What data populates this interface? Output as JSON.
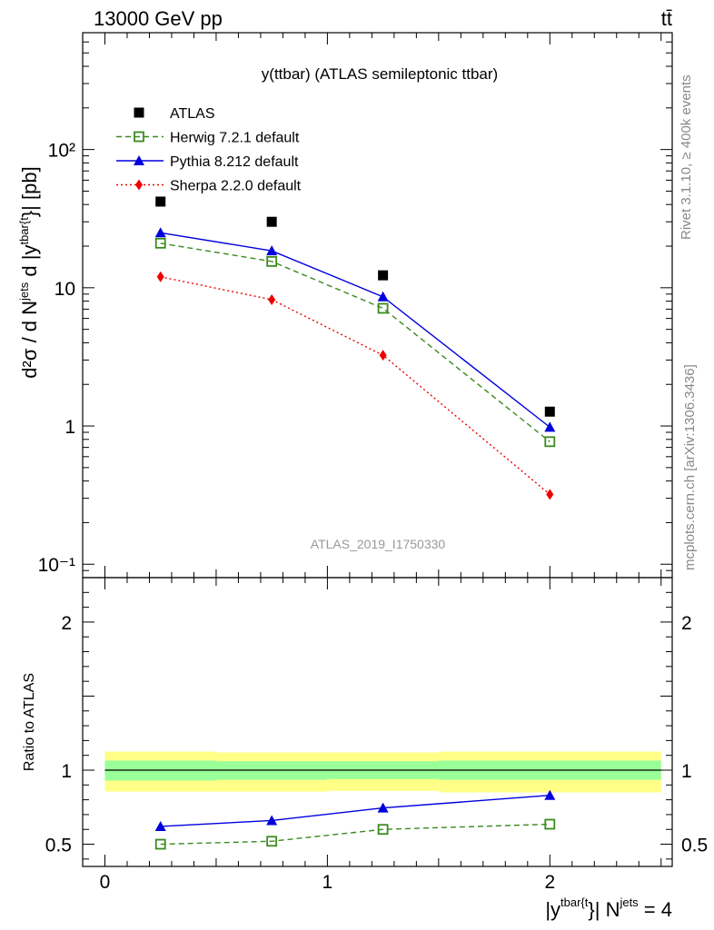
{
  "header": {
    "energy_label": "13000 GeV pp",
    "process_label": "tt̄"
  },
  "side_labels": {
    "rivet": "Rivet 3.1.10, ≥ 400k events",
    "mcplots": "mcplots.cern.ch [arXiv:1306.3436]"
  },
  "chart_data": [
    {
      "type": "scatter",
      "title": "y(ttbar) (ATLAS semileptonic ttbar)",
      "watermark": "ATLAS_2019_I1750330",
      "ylabel": {
        "main": "d²σ / d N",
        "sup1": "jets",
        "mid": " d |y",
        "sup2": "tbar{t",
        "end": "}| [pb]"
      },
      "yscale": "log",
      "ylim": [
        0.08,
        700
      ],
      "xlim": [
        -0.1,
        2.55
      ],
      "yticks": [
        {
          "v": 0.1,
          "label": "10⁻¹"
        },
        {
          "v": 1,
          "label": "1"
        },
        {
          "v": 10,
          "label": "10"
        },
        {
          "v": 100,
          "label": "10²"
        }
      ],
      "x": [
        0.25,
        0.75,
        1.25,
        2.0
      ],
      "legend_position": "top-left",
      "series": [
        {
          "name": "ATLAS",
          "marker": "square-filled",
          "color": "#000000",
          "line": "none",
          "values": [
            42,
            30,
            12.3,
            1.27
          ]
        },
        {
          "name": "Herwig 7.2.1 default",
          "marker": "square-open",
          "color": "#3a8a1e",
          "line": "dashed",
          "values": [
            21,
            15.5,
            7.1,
            0.77
          ]
        },
        {
          "name": "Pythia 8.212 default",
          "marker": "triangle-filled",
          "color": "#0000dd",
          "line": "solid",
          "values": [
            25,
            18.5,
            8.6,
            0.98
          ]
        },
        {
          "name": "Sherpa 2.2.0 default",
          "marker": "diamond-filled",
          "color": "#ee0000",
          "line": "dotted",
          "values": [
            12,
            8.2,
            3.25,
            0.32
          ]
        }
      ]
    },
    {
      "type": "scatter",
      "ylabel": "Ratio to ATLAS",
      "xlabel": {
        "main": "|y",
        "sup1": "tbar{t",
        "mid": "}| N",
        "sup2": "jets",
        "end": " = 4"
      },
      "ylim": [
        0.35,
        2.3
      ],
      "xlim": [
        -0.1,
        2.55
      ],
      "yticks": [
        0.5,
        1,
        2
      ],
      "xticks": [
        0,
        1,
        2
      ],
      "reference_line": 1.0,
      "bands": {
        "bins": [
          [
            0,
            0.5
          ],
          [
            0.5,
            1.0
          ],
          [
            1.0,
            1.5
          ],
          [
            1.5,
            2.5
          ]
        ],
        "outer": {
          "color": "#ffff88",
          "lo": [
            0.855,
            0.855,
            0.86,
            0.85
          ],
          "hi": [
            1.125,
            1.12,
            1.12,
            1.125
          ]
        },
        "inner": {
          "color": "#99ff99",
          "lo": [
            0.93,
            0.935,
            0.94,
            0.935
          ],
          "hi": [
            1.065,
            1.06,
            1.06,
            1.065
          ]
        }
      },
      "x": [
        0.25,
        0.75,
        1.25,
        2.0
      ],
      "series": [
        {
          "name": "Pythia 8.212 default",
          "marker": "triangle-filled",
          "color": "#0000dd",
          "line": "solid",
          "values": [
            0.62,
            0.66,
            0.745,
            0.83
          ],
          "errors": [
            0,
            0,
            0,
            0.025
          ]
        },
        {
          "name": "Herwig 7.2.1 default",
          "marker": "square-open",
          "color": "#3a8a1e",
          "line": "dashed",
          "values": [
            0.5,
            0.52,
            0.6,
            0.635
          ],
          "errors": [
            0,
            0,
            0,
            0
          ]
        }
      ]
    }
  ]
}
